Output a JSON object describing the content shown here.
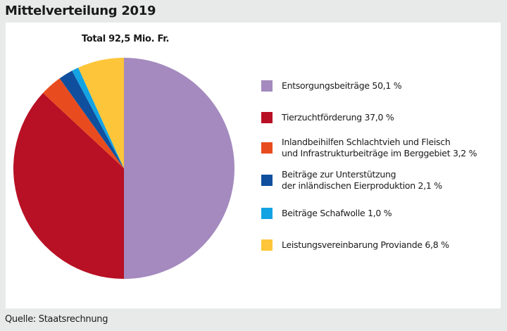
{
  "title": "Mittelverteilung 2019",
  "source": "Quelle: Staatsrechnung",
  "chart_data": {
    "type": "pie",
    "subtitle": "Total 92,5 Mio. Fr.",
    "start": "top",
    "direction": "clockwise",
    "slices": [
      {
        "label": "Entsorgungsbeiträge 50,1 %",
        "value": 50.1,
        "color": "#a48abe"
      },
      {
        "label": "Tierzuchtförderung 37,0 %",
        "value": 37.0,
        "color": "#b81024"
      },
      {
        "label": "Inlandbeihilfen Schlachtvieh und Fleisch\nund Infrastrukturbeiträge im Berggebiet 3,2 %",
        "value": 3.2,
        "color": "#e84c1e"
      },
      {
        "label": "Beiträge zur Unterstützung\nder inländischen Eierproduktion 2,1 %",
        "value": 2.1,
        "color": "#0f4f9e"
      },
      {
        "label": "Beiträge Schafwolle 1,0 %",
        "value": 1.0,
        "color": "#13a3e3"
      },
      {
        "label": "Leistungsvereinbarung Proviande 6,8 %",
        "value": 6.8,
        "color": "#fdc63a"
      }
    ],
    "legend": "right"
  }
}
